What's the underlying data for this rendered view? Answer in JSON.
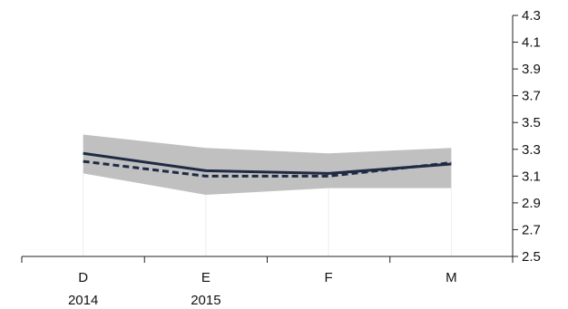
{
  "chart_data": {
    "type": "line",
    "categories": [
      "D",
      "E",
      "F",
      "M"
    ],
    "category_sublabels": [
      "2014",
      "2015",
      "",
      ""
    ],
    "y_axis": {
      "position": "right",
      "ylim": [
        2.5,
        4.3
      ],
      "ticks": [
        "2.5",
        "2.7",
        "2.9",
        "3.1",
        "3.3",
        "3.5",
        "3.7",
        "3.9",
        "4.1",
        "4.3"
      ]
    },
    "grid": false,
    "legend": "none",
    "series": [
      {
        "style": "solid",
        "color": "#1f2b45",
        "values": [
          3.27,
          3.14,
          3.12,
          3.19
        ]
      },
      {
        "style": "dashed",
        "color": "#1f2b45",
        "values": [
          3.21,
          3.1,
          3.1,
          3.2
        ]
      }
    ],
    "band": {
      "color": "#c0c0c0",
      "upper": [
        3.41,
        3.31,
        3.27,
        3.31
      ],
      "lower": [
        3.12,
        2.96,
        3.01,
        3.01
      ]
    }
  }
}
